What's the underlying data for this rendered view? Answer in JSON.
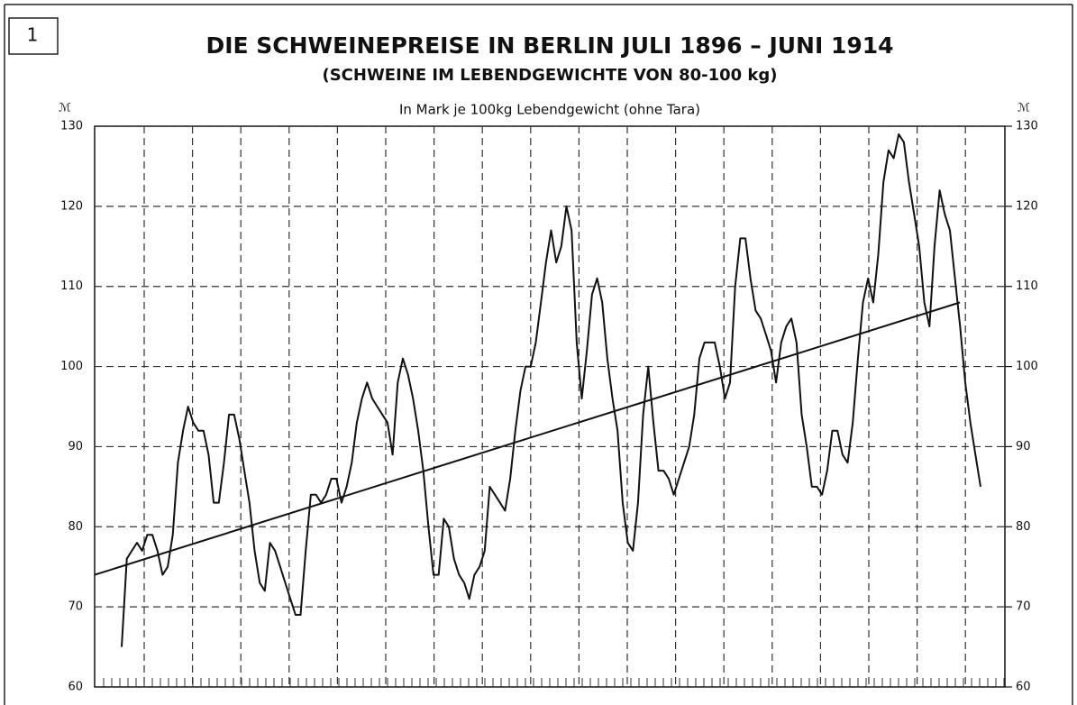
{
  "chart_data": {
    "type": "line",
    "label": "1",
    "title": "DIE SCHWEINEPREISE IN BERLIN JULI 1896 – JUNI 1914",
    "subtitle": "(SCHWEINE IM LEBENDGEWICHTE VON 80-100 kg)",
    "ylabel": "In Mark je 100kg Lebendgewicht (ohne Tara)",
    "unit": "ℳ",
    "color": "#111111",
    "grid": true,
    "ylim": [
      60,
      130
    ],
    "yticks": [
      60,
      70,
      80,
      90,
      100,
      110,
      120,
      130
    ],
    "values": [
      65,
      76,
      77,
      78,
      77,
      79,
      79,
      77,
      74,
      75,
      79,
      88,
      92,
      95,
      93,
      92,
      92,
      89,
      83,
      83,
      88,
      94,
      94,
      91,
      87,
      83,
      77,
      73,
      72,
      78,
      77,
      75,
      73,
      71,
      69,
      69,
      77,
      84,
      84,
      83,
      84,
      86,
      86,
      83,
      85,
      88,
      93,
      96,
      98,
      96,
      95,
      94,
      93,
      89,
      98,
      101,
      99,
      96,
      92,
      87,
      80,
      74,
      74,
      81,
      80,
      76,
      74,
      73,
      71,
      74,
      75,
      77,
      85,
      84,
      83,
      82,
      86,
      92,
      97,
      100,
      100,
      103,
      108,
      113,
      117,
      113,
      115,
      120,
      117,
      103,
      96,
      102,
      109,
      111,
      108,
      101,
      96,
      92,
      83,
      78,
      77,
      83,
      94,
      100,
      93,
      87,
      87,
      86,
      84,
      86,
      88,
      90,
      94,
      101,
      103,
      103,
      103,
      100,
      96,
      98,
      110,
      116,
      116,
      111,
      107,
      106,
      104,
      102,
      98,
      103,
      105,
      106,
      103,
      94,
      90,
      85,
      85,
      84,
      87,
      92,
      92,
      89,
      88,
      93,
      101,
      108,
      111,
      108,
      114,
      123,
      127,
      126,
      129,
      128,
      123,
      119,
      115,
      108,
      105,
      115,
      122,
      119,
      117,
      111,
      105,
      98,
      93,
      89,
      85
    ],
    "trend_values": [
      74,
      108
    ]
  }
}
